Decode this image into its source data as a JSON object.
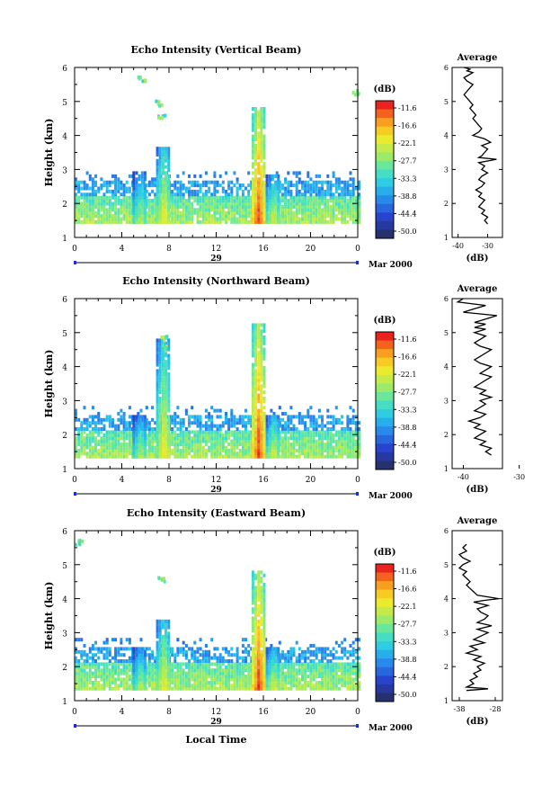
{
  "panels": [
    {
      "title": "Echo Intensity (Vertical Beam)",
      "ylabel": "Height (km)",
      "yticks": [
        "1",
        "2",
        "3",
        "4",
        "5",
        "6"
      ],
      "xticks": [
        "0",
        "4",
        "8",
        "12",
        "16",
        "20",
        "0"
      ],
      "day": "29",
      "date_label": "Mar 2000",
      "colorbar_unit": "(dB)",
      "colorbar_labels": [
        "-11.6",
        "-16.6",
        "-22.1",
        "-27.7",
        "-33.3",
        "-38.8",
        "-44.4",
        "-50.0"
      ],
      "avg_title": "Average",
      "avg_xticks": [
        "-40",
        "-30"
      ],
      "avg_xlabel": "(dB)",
      "avg_yticks": [
        "1",
        "2",
        "3",
        "4",
        "5",
        "6"
      ]
    },
    {
      "title": "Echo Intensity (Northward Beam)",
      "ylabel": "Height (km)",
      "yticks": [
        "1",
        "2",
        "3",
        "4",
        "5",
        "6"
      ],
      "xticks": [
        "0",
        "4",
        "8",
        "12",
        "16",
        "20",
        "0"
      ],
      "day": "29",
      "date_label": "Mar 2000",
      "colorbar_unit": "(dB)",
      "colorbar_labels": [
        "-11.6",
        "-16.6",
        "-22.1",
        "-27.7",
        "-33.3",
        "-38.8",
        "-44.4",
        "-50.0"
      ],
      "avg_title": "Average",
      "avg_xticks": [
        "-40",
        "-30"
      ],
      "avg_xlabel": "(dB)",
      "avg_yticks": [
        "1",
        "2",
        "3",
        "4",
        "5",
        "6"
      ]
    },
    {
      "title": "Echo Intensity (Eastward Beam)",
      "ylabel": "Height (km)",
      "yticks": [
        "1",
        "2",
        "3",
        "4",
        "5",
        "6"
      ],
      "xticks": [
        "0",
        "4",
        "8",
        "12",
        "16",
        "20",
        "0"
      ],
      "day": "29",
      "date_label": "Mar 2000",
      "colorbar_unit": "(dB)",
      "colorbar_labels": [
        "-11.6",
        "-16.6",
        "-22.1",
        "-27.7",
        "-33.3",
        "-38.8",
        "-44.4",
        "-50.0"
      ],
      "avg_title": "Average",
      "avg_xticks": [
        "-38",
        "-28"
      ],
      "avg_xlabel": "(dB)",
      "avg_yticks": [
        "1",
        "2",
        "3",
        "4",
        "5",
        "6"
      ]
    }
  ],
  "xlabel_bottom": "Local Time",
  "chart_data": [
    {
      "type": "heatmap",
      "title": "Echo Intensity (Vertical Beam)",
      "xlabel": "",
      "ylabel": "Height (km)",
      "xlim": [
        0,
        24
      ],
      "ylim": [
        1,
        6
      ],
      "colorbar_range": [
        -50.0,
        -11.6
      ],
      "echo_layer_top_km": 2.5,
      "echo_layer_bottom_km": 1.4,
      "features": [
        {
          "x": 5.5,
          "top": 2.9,
          "peak": -24
        },
        {
          "x": 7.5,
          "top": 3.6,
          "peak": -20
        },
        {
          "x": 15.5,
          "top": 4.8,
          "peak": -12
        },
        {
          "x": 16.8,
          "top": 2.8,
          "peak": -22
        }
      ],
      "patches": [
        {
          "x": 7.3,
          "y": 4.6
        },
        {
          "x": 7.1,
          "y": 5.0
        },
        {
          "x": 5.6,
          "y": 5.7
        },
        {
          "x": 23.8,
          "y": 5.3
        }
      ]
    },
    {
      "type": "line",
      "title": "Average",
      "xlabel": "(dB)",
      "ylabel": "",
      "xlim": [
        -42,
        -25
      ],
      "ylim": [
        1,
        6
      ],
      "x": [
        -30,
        -31,
        -30,
        -32,
        -31,
        -33,
        -32,
        -31,
        -33,
        -32,
        -34,
        -32,
        -31,
        -33,
        -32,
        -30,
        -32,
        -31,
        -33,
        -27,
        -33,
        -32,
        -31,
        -30,
        -32,
        -29,
        -31,
        -35,
        -33,
        -32,
        -33,
        -34,
        -35,
        -34,
        -35,
        -36,
        -35,
        -36,
        -37,
        -38,
        -37,
        -36,
        -35,
        -37,
        -38,
        -37,
        -36,
        -35,
        -37,
        -36,
        -38
      ],
      "y": [
        1.4,
        1.5,
        1.6,
        1.7,
        1.8,
        1.9,
        2.0,
        2.1,
        2.2,
        2.3,
        2.4,
        2.5,
        2.6,
        2.7,
        2.8,
        2.9,
        3.0,
        3.1,
        3.2,
        3.3,
        3.35,
        3.4,
        3.5,
        3.6,
        3.7,
        3.8,
        3.9,
        4.0,
        4.1,
        4.2,
        4.3,
        4.4,
        4.5,
        4.6,
        4.7,
        4.8,
        4.9,
        5.0,
        5.1,
        5.2,
        5.3,
        5.4,
        5.5,
        5.6,
        5.7,
        5.75,
        5.8,
        5.85,
        5.9,
        5.95,
        6.0
      ]
    },
    {
      "type": "heatmap",
      "title": "Echo Intensity (Northward Beam)",
      "xlabel": "",
      "ylabel": "Height (km)",
      "xlim": [
        0,
        24
      ],
      "ylim": [
        1,
        6
      ],
      "colorbar_range": [
        -50.0,
        -11.6
      ],
      "echo_layer_top_km": 2.4,
      "echo_layer_bottom_km": 1.3,
      "features": [
        {
          "x": 5.5,
          "top": 2.5,
          "peak": -24
        },
        {
          "x": 7.5,
          "top": 4.8,
          "peak": -20
        },
        {
          "x": 15.5,
          "top": 5.2,
          "peak": -12
        },
        {
          "x": 16.8,
          "top": 2.5,
          "peak": -22
        }
      ],
      "patches": [
        {
          "x": 7.5,
          "y": 4.6
        },
        {
          "x": 7.5,
          "y": 4.9
        }
      ]
    },
    {
      "type": "line",
      "title": "Average",
      "xlabel": "(dB)",
      "ylabel": "",
      "xlim": [
        -42,
        -33
      ],
      "ylim": [
        1,
        6
      ],
      "x": [
        -35,
        -36,
        -35,
        -37,
        -36,
        -38,
        -37,
        -36,
        -38,
        -37,
        -39,
        -37,
        -36,
        -38,
        -37,
        -36,
        -37,
        -35,
        -37,
        -36,
        -38,
        -37,
        -36,
        -35,
        -37,
        -36,
        -35,
        -37,
        -38,
        -37,
        -36,
        -35,
        -37,
        -38,
        -37,
        -36,
        -38,
        -37,
        -36,
        -38,
        -37,
        -36,
        -38,
        -37,
        -36,
        -35,
        -34,
        -40,
        -38,
        -36,
        -41,
        -40
      ],
      "y": [
        1.4,
        1.5,
        1.6,
        1.7,
        1.8,
        1.9,
        2.0,
        2.1,
        2.2,
        2.3,
        2.4,
        2.5,
        2.6,
        2.7,
        2.8,
        2.9,
        3.0,
        3.1,
        3.2,
        3.3,
        3.4,
        3.5,
        3.6,
        3.7,
        3.8,
        3.9,
        4.0,
        4.1,
        4.2,
        4.3,
        4.4,
        4.5,
        4.6,
        4.7,
        4.8,
        4.9,
        5.0,
        5.05,
        5.1,
        5.15,
        5.2,
        5.25,
        5.3,
        5.35,
        5.4,
        5.45,
        5.5,
        5.6,
        5.7,
        5.8,
        5.9,
        6.0
      ]
    },
    {
      "type": "heatmap",
      "title": "Echo Intensity (Eastward Beam)",
      "xlabel": "Local Time",
      "ylabel": "Height (km)",
      "xlim": [
        0,
        24
      ],
      "ylim": [
        1,
        6
      ],
      "colorbar_range": [
        -50.0,
        -11.6
      ],
      "echo_layer_top_km": 2.4,
      "echo_layer_bottom_km": 1.3,
      "features": [
        {
          "x": 5.5,
          "top": 2.5,
          "peak": -24
        },
        {
          "x": 7.5,
          "top": 3.3,
          "peak": -20
        },
        {
          "x": 15.5,
          "top": 4.8,
          "peak": -12
        },
        {
          "x": 16.8,
          "top": 2.5,
          "peak": -22
        }
      ],
      "patches": [
        {
          "x": 7.3,
          "y": 4.6
        },
        {
          "x": 0.3,
          "y": 5.7
        }
      ]
    },
    {
      "type": "line",
      "title": "Average",
      "xlabel": "(dB)",
      "ylabel": "",
      "xlim": [
        -40,
        -26
      ],
      "ylim": [
        1,
        6
      ],
      "x": [
        -36,
        -30,
        -36,
        -34,
        -35,
        -33,
        -34,
        -32,
        -33,
        -31,
        -34,
        -32,
        -36,
        -33,
        -35,
        -31,
        -34,
        -32,
        -30,
        -33,
        -29,
        -33,
        -31,
        -30,
        -32,
        -33,
        -30,
        -34,
        -31,
        -27,
        -33,
        -34,
        -35,
        -36,
        -35,
        -36,
        -37,
        -36,
        -38,
        -37,
        -35,
        -37,
        -38,
        -36,
        -37,
        -36
      ],
      "y": [
        1.3,
        1.35,
        1.4,
        1.5,
        1.6,
        1.7,
        1.8,
        1.9,
        2.0,
        2.1,
        2.2,
        2.3,
        2.4,
        2.5,
        2.6,
        2.7,
        2.8,
        2.9,
        3.0,
        3.1,
        3.2,
        3.3,
        3.4,
        3.5,
        3.6,
        3.7,
        3.8,
        3.9,
        3.95,
        4.0,
        4.1,
        4.2,
        4.3,
        4.4,
        4.5,
        4.6,
        4.7,
        4.8,
        4.9,
        5.0,
        5.1,
        5.2,
        5.3,
        5.4,
        5.5,
        5.6
      ]
    }
  ]
}
